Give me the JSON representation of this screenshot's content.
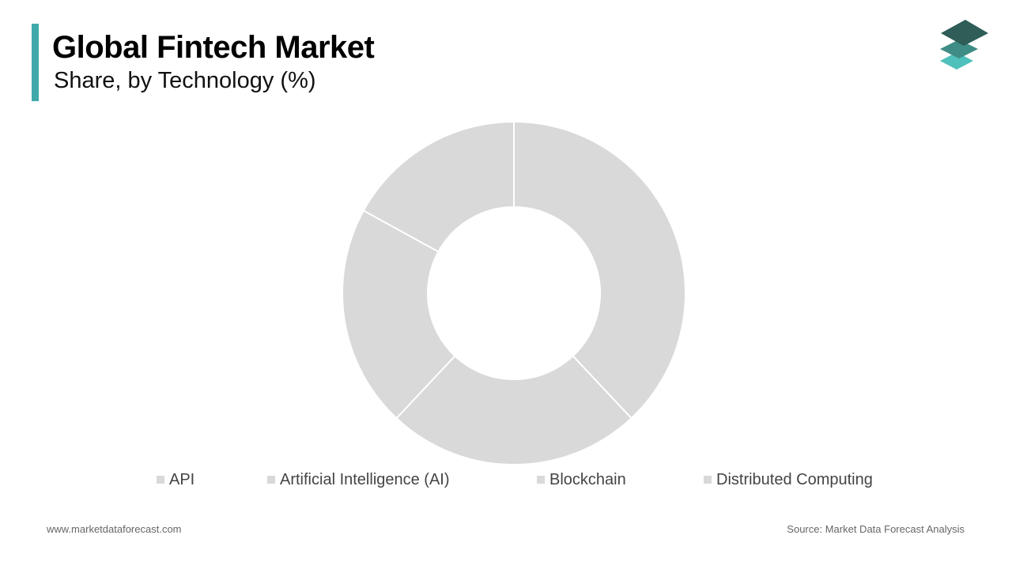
{
  "header": {
    "title": "Global Fintech Market",
    "subtitle": "Share, by Technology (%)"
  },
  "colors": {
    "accent": "#3fa9a9",
    "slice": "#d9d9d9",
    "logo_top": "#2f5d58",
    "logo_mid": "#3f8c86",
    "logo_bottom": "#4fc0bb"
  },
  "chart_data": {
    "type": "pie",
    "categories": [
      "API",
      "Artificial Intelligence (AI)",
      "Blockchain",
      "Distributed Computing"
    ],
    "values": [
      38,
      24,
      21,
      17
    ],
    "legend_position": "bottom"
  },
  "footer": {
    "website": "www.marketdataforecast.com",
    "source": "Source: Market Data Forecast Analysis"
  }
}
